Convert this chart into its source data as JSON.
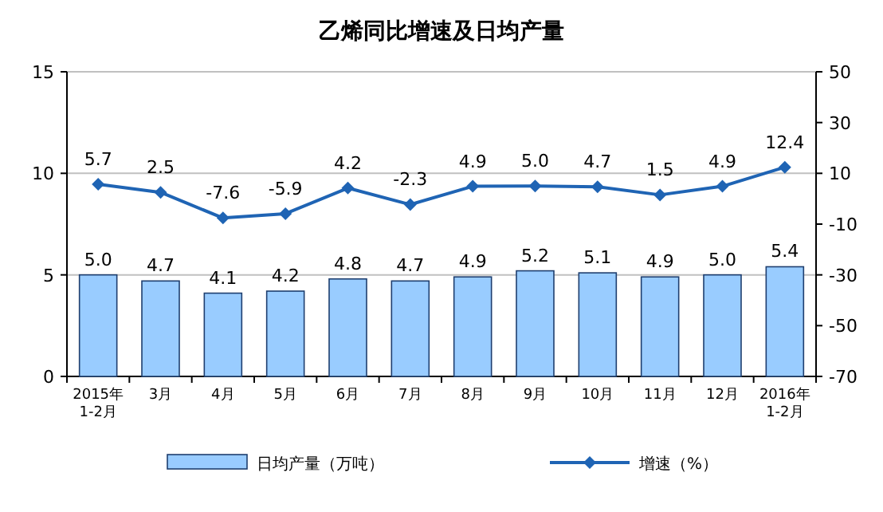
{
  "chart_data": {
    "type": "bar",
    "title": "乙烯同比增速及日均产量",
    "categories": [
      "2015年\n1-2月",
      "3月",
      "4月",
      "5月",
      "6月",
      "7月",
      "8月",
      "9月",
      "10月",
      "11月",
      "12月",
      "2016年\n1-2月"
    ],
    "series": [
      {
        "name": "日均产量（万吨）",
        "color": "#99ccff",
        "values": [
          5.0,
          4.7,
          4.1,
          4.2,
          4.8,
          4.7,
          4.9,
          5.2,
          5.1,
          4.9,
          5.0,
          5.4
        ],
        "value_labels": [
          "5.0",
          "4.7",
          "4.1",
          "4.2",
          "4.8",
          "4.7",
          "4.9",
          "5.2",
          "5.1",
          "4.9",
          "5.0",
          "5.4"
        ]
      },
      {
        "name": "增速（%）",
        "type": "line",
        "axis": "y2",
        "color": "#1f64b4",
        "marker": "diamond",
        "values": [
          5.7,
          2.5,
          -7.6,
          -5.9,
          4.2,
          -2.3,
          4.9,
          5.0,
          4.7,
          1.5,
          4.9,
          12.4
        ],
        "value_labels": [
          "5.7",
          "2.5",
          "-7.6",
          "-5.9",
          "4.2",
          "-2.3",
          "4.9",
          "5.0",
          "4.7",
          "1.5",
          "4.9",
          "12.4"
        ]
      }
    ],
    "ylim": [
      0,
      15
    ],
    "yticks": [
      0,
      5,
      10,
      15
    ],
    "y2lim": [
      -70,
      50
    ],
    "y2ticks": [
      -70,
      -50,
      -30,
      -10,
      10,
      30,
      50
    ],
    "grid": "y",
    "legend": "bottom"
  }
}
